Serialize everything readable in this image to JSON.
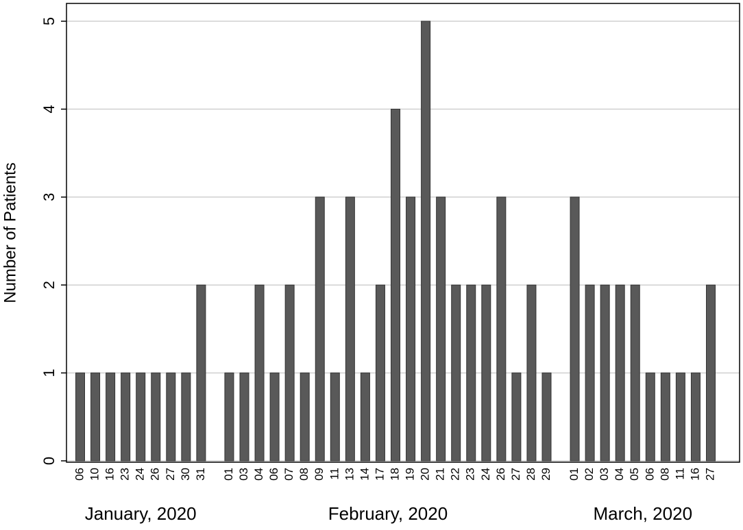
{
  "chart_data": {
    "type": "bar",
    "ylabel": "Number of Patients",
    "color": "#595959",
    "ylim": [
      0,
      5
    ],
    "yticks": [
      0,
      1,
      2,
      3,
      4,
      5
    ],
    "grid": true,
    "groups": [
      {
        "name": "January, 2020",
        "categories": [
          "06",
          "10",
          "16",
          "23",
          "24",
          "26",
          "27",
          "30",
          "31"
        ],
        "values": [
          1,
          1,
          1,
          1,
          1,
          1,
          1,
          1,
          2
        ]
      },
      {
        "name": "February, 2020",
        "categories": [
          "01",
          "03",
          "04",
          "06",
          "07",
          "08",
          "09",
          "11",
          "13",
          "14",
          "17",
          "18",
          "19",
          "20",
          "21",
          "22",
          "23",
          "24",
          "26",
          "27",
          "28",
          "29"
        ],
        "values": [
          1,
          1,
          2,
          1,
          2,
          1,
          3,
          1,
          3,
          1,
          2,
          4,
          3,
          5,
          3,
          2,
          2,
          2,
          3,
          1,
          2,
          1
        ]
      },
      {
        "name": "March, 2020",
        "categories": [
          "01",
          "02",
          "03",
          "04",
          "05",
          "06",
          "08",
          "11",
          "16",
          "27"
        ],
        "values": [
          3,
          2,
          2,
          2,
          2,
          1,
          1,
          1,
          1,
          2
        ]
      }
    ]
  }
}
